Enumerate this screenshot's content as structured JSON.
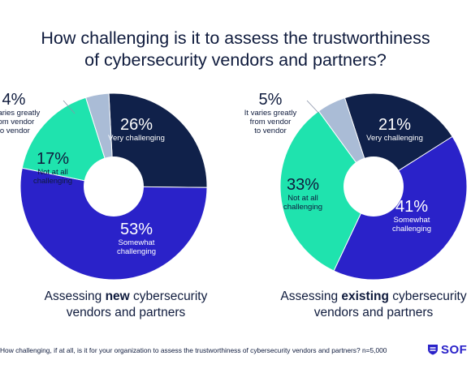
{
  "title_line1": "How challenging is it to assess the trustworthiness",
  "title_line2": "of cybersecurity vendors and partners?",
  "footnote": "How challenging, if at all, is it for your organization to assess the trustworthiness of cybersecurity vendors and partners? n=5,000",
  "logo_text": "SOF",
  "colors": {
    "very": "#10214a",
    "somewhat": "#2a22c9",
    "not_at_all": "#1fe3ae",
    "varies": "#aabcd6"
  },
  "chart_data": [
    {
      "type": "pie",
      "donut": true,
      "caption_prefix": "Assessing ",
      "caption_bold": "new",
      "caption_suffix": " cybersecurity",
      "caption_line2": "vendors and partners",
      "slices": [
        {
          "key": "very",
          "pct_label": "26%",
          "label": "Very challenging",
          "value": 26
        },
        {
          "key": "somewhat",
          "pct_label": "53%",
          "label": "Somewhat\nchallenging",
          "value": 53
        },
        {
          "key": "not_at_all",
          "pct_label": "17%",
          "label": "Not at all\nchallenging",
          "value": 17
        },
        {
          "key": "varies",
          "pct_label": "4%",
          "label": "It varies greatly\nfrom vendor\nto vendor",
          "value": 4
        }
      ]
    },
    {
      "type": "pie",
      "donut": true,
      "caption_prefix": "Assessing ",
      "caption_bold": "existing",
      "caption_suffix": " cybersecurity",
      "caption_line2": "vendors and partners",
      "slices": [
        {
          "key": "very",
          "pct_label": "21%",
          "label": "Very challenging",
          "value": 21
        },
        {
          "key": "somewhat",
          "pct_label": "41%",
          "label": "Somewhat\nchallenging",
          "value": 41
        },
        {
          "key": "not_at_all",
          "pct_label": "33%",
          "label": "Not at all\nchallenging",
          "value": 33
        },
        {
          "key": "varies",
          "pct_label": "5%",
          "label": "It varies greatly\nfrom vendor\nto vendor",
          "value": 5
        }
      ]
    }
  ]
}
